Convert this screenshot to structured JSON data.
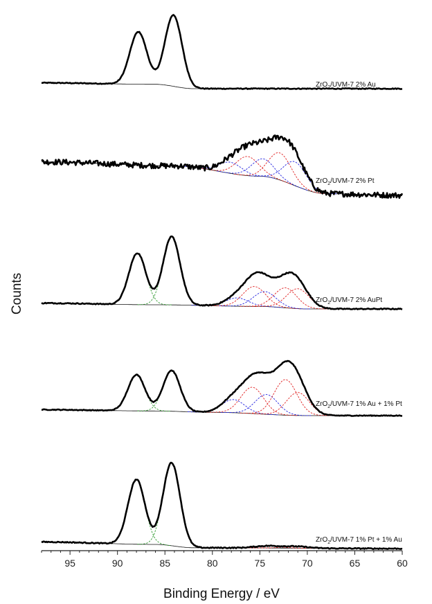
{
  "chart_data": {
    "type": "line",
    "title": "",
    "xlabel": "Binding Energy / eV",
    "ylabel": "Counts",
    "x_reversed": true,
    "xlim": [
      98,
      60
    ],
    "x_ticks": [
      95,
      90,
      85,
      80,
      75,
      70,
      65,
      60
    ],
    "grid": false,
    "legend": "none",
    "colors": {
      "envelope": "#000000",
      "background": "#000000",
      "au_component": "#2e9a2e",
      "pt_component_a": "#e02020",
      "pt_component_b": "#2424e0"
    },
    "panels": [
      {
        "label_prefix": "ZrO",
        "label_sub": "2",
        "label_suffix": "/UVM-7 2% Au",
        "background": [
          [
            98,
            0.08
          ],
          [
            86,
            0.06
          ],
          [
            82,
            0.0
          ],
          [
            60,
            0.0
          ]
        ],
        "components": [
          {
            "species": "Au",
            "color_key": "au_component",
            "center": 87.8,
            "amplitude": 0.72,
            "width": 0.9,
            "visible": false
          },
          {
            "species": "Au",
            "color_key": "au_component",
            "center": 84.1,
            "amplitude": 0.98,
            "width": 0.9,
            "visible": false
          }
        ]
      },
      {
        "label_prefix": "ZrO",
        "label_sub": "2",
        "label_suffix": "/UVM-7 2% Pt",
        "background": [
          [
            98,
            0.42
          ],
          [
            84,
            0.37
          ],
          [
            75,
            0.24
          ],
          [
            68,
            0.02
          ],
          [
            60,
            0.0
          ]
        ],
        "noise": 0.035,
        "components": [
          {
            "species": "Pt",
            "color_key": "pt_component_b",
            "center": 78.1,
            "amplitude": 0.14,
            "width": 1.2,
            "visible": true
          },
          {
            "species": "Pt",
            "color_key": "pt_component_a",
            "center": 76.3,
            "amplitude": 0.24,
            "width": 1.2,
            "visible": true
          },
          {
            "species": "Pt",
            "color_key": "pt_component_b",
            "center": 74.7,
            "amplitude": 0.22,
            "width": 1.2,
            "visible": true
          },
          {
            "species": "Pt",
            "color_key": "pt_component_a",
            "center": 72.9,
            "amplitude": 0.34,
            "width": 1.2,
            "visible": true
          },
          {
            "species": "Pt",
            "color_key": "pt_component_b",
            "center": 71.3,
            "amplitude": 0.3,
            "width": 1.2,
            "visible": true
          }
        ]
      },
      {
        "label_prefix": "ZrO",
        "label_sub": "2",
        "label_suffix": "/UVM-7 2% AuPt",
        "background": [
          [
            98,
            0.07
          ],
          [
            86,
            0.05
          ],
          [
            75,
            0.03
          ],
          [
            70,
            0.0
          ],
          [
            60,
            0.0
          ]
        ],
        "components": [
          {
            "species": "Au",
            "color_key": "au_component",
            "center": 87.9,
            "amplitude": 0.62,
            "width": 0.9,
            "visible": true
          },
          {
            "species": "Au",
            "color_key": "au_component",
            "center": 84.3,
            "amplitude": 0.82,
            "width": 0.9,
            "visible": true
          },
          {
            "species": "Pt",
            "color_key": "pt_component_b",
            "center": 77.4,
            "amplitude": 0.1,
            "width": 1.2,
            "visible": true
          },
          {
            "species": "Pt",
            "color_key": "pt_component_a",
            "center": 75.6,
            "amplitude": 0.24,
            "width": 1.2,
            "visible": true
          },
          {
            "species": "Pt",
            "color_key": "pt_component_b",
            "center": 74.5,
            "amplitude": 0.18,
            "width": 1.2,
            "visible": true
          },
          {
            "species": "Pt",
            "color_key": "pt_component_a",
            "center": 72.3,
            "amplitude": 0.24,
            "width": 1.2,
            "visible": true
          },
          {
            "species": "Pt",
            "color_key": "pt_component_a",
            "center": 71.0,
            "amplitude": 0.24,
            "width": 1.2,
            "visible": true
          }
        ]
      },
      {
        "label_prefix": "ZrO",
        "label_sub": "2",
        "label_suffix": "/UVM-7 1% Au + 1% Pt",
        "background": [
          [
            98,
            0.09
          ],
          [
            86,
            0.07
          ],
          [
            80,
            0.05
          ],
          [
            70,
            0.0
          ],
          [
            60,
            0.0
          ]
        ],
        "components": [
          {
            "species": "Au",
            "color_key": "au_component",
            "center": 88.0,
            "amplitude": 0.55,
            "width": 0.9,
            "visible": true
          },
          {
            "species": "Au",
            "color_key": "au_component",
            "center": 84.3,
            "amplitude": 0.62,
            "width": 0.9,
            "visible": true
          },
          {
            "species": "Pt",
            "color_key": "pt_component_b",
            "center": 77.8,
            "amplitude": 0.2,
            "width": 1.2,
            "visible": true
          },
          {
            "species": "Pt",
            "color_key": "pt_component_a",
            "center": 75.8,
            "amplitude": 0.4,
            "width": 1.2,
            "visible": true
          },
          {
            "species": "Pt",
            "color_key": "pt_component_b",
            "center": 74.3,
            "amplitude": 0.3,
            "width": 1.2,
            "visible": true
          },
          {
            "species": "Pt",
            "color_key": "pt_component_a",
            "center": 72.3,
            "amplitude": 0.54,
            "width": 1.2,
            "visible": true
          },
          {
            "species": "Pt",
            "color_key": "pt_component_a",
            "center": 71.0,
            "amplitude": 0.35,
            "width": 1.2,
            "visible": true
          }
        ]
      },
      {
        "label_prefix": "ZrO",
        "label_sub": "2",
        "label_suffix": "/UVM-7 1% Pt + 1% Au",
        "background": [
          [
            98,
            0.08
          ],
          [
            86,
            0.05
          ],
          [
            82,
            0.01
          ],
          [
            60,
            0.0
          ]
        ],
        "components": [
          {
            "species": "Au",
            "color_key": "au_component",
            "center": 88.0,
            "amplitude": 0.78,
            "width": 0.9,
            "visible": true
          },
          {
            "species": "Au",
            "color_key": "au_component",
            "center": 84.3,
            "amplitude": 1.0,
            "width": 0.9,
            "visible": true
          },
          {
            "species": "Pt",
            "color_key": "pt_component_a",
            "center": 74.2,
            "amplitude": 0.025,
            "width": 1.3,
            "visible": true
          },
          {
            "species": "Pt",
            "color_key": "pt_component_a",
            "center": 71.2,
            "amplitude": 0.02,
            "width": 1.3,
            "visible": true
          }
        ]
      }
    ]
  }
}
